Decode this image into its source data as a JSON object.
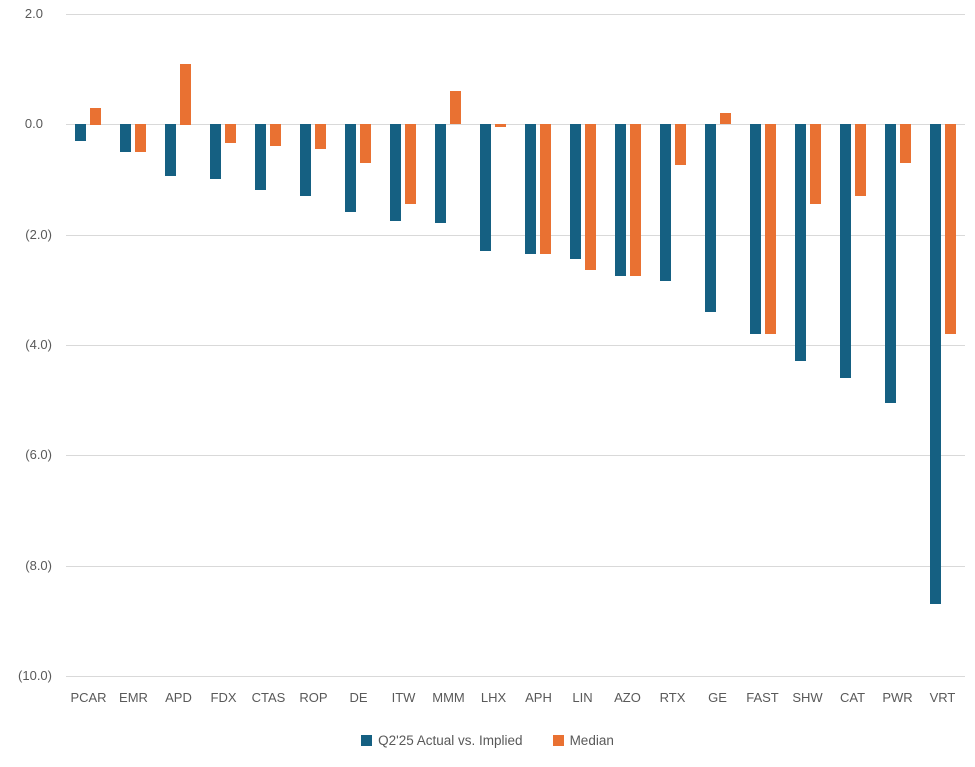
{
  "chart_data": {
    "type": "bar",
    "title": "",
    "xlabel": "",
    "ylabel": "",
    "categories": [
      "PCAR",
      "EMR",
      "APD",
      "FDX",
      "CTAS",
      "ROP",
      "DE",
      "ITW",
      "MMM",
      "LHX",
      "APH",
      "LIN",
      "AZO",
      "RTX",
      "GE",
      "FAST",
      "SHW",
      "CAT",
      "PWR",
      "VRT"
    ],
    "series": [
      {
        "name": "Q2'25 Actual vs. Implied",
        "color": "#156082",
        "values": [
          -0.3,
          -0.5,
          -0.95,
          -1.0,
          -1.2,
          -1.3,
          -1.6,
          -1.75,
          -1.8,
          -2.3,
          -2.35,
          -2.45,
          -2.75,
          -2.85,
          -3.4,
          -3.8,
          -4.3,
          -4.6,
          -5.05,
          -8.7
        ]
      },
      {
        "name": "Median",
        "color": "#E97132",
        "values": [
          0.3,
          -0.5,
          1.1,
          -0.35,
          -0.4,
          -0.45,
          -0.7,
          -1.45,
          0.6,
          -0.05,
          -2.35,
          -2.65,
          -2.75,
          -0.75,
          0.2,
          -3.8,
          -1.45,
          -1.3,
          -0.7,
          -3.8
        ]
      }
    ],
    "yticks": [
      {
        "label": "2.0",
        "value": 2
      },
      {
        "label": "0.0",
        "value": 0
      },
      {
        "label": "(2.0)",
        "value": -2
      },
      {
        "label": "(4.0)",
        "value": -4
      },
      {
        "label": "(6.0)",
        "value": -6
      },
      {
        "label": "(8.0)",
        "value": -8
      },
      {
        "label": "(10.0)",
        "value": -10
      }
    ],
    "ylim": [
      -10,
      2
    ],
    "grid": true,
    "legend_position": "bottom",
    "colors": {
      "gridline": "#D9D9D9",
      "text": "#595959",
      "background": "#FFFFFF"
    }
  }
}
